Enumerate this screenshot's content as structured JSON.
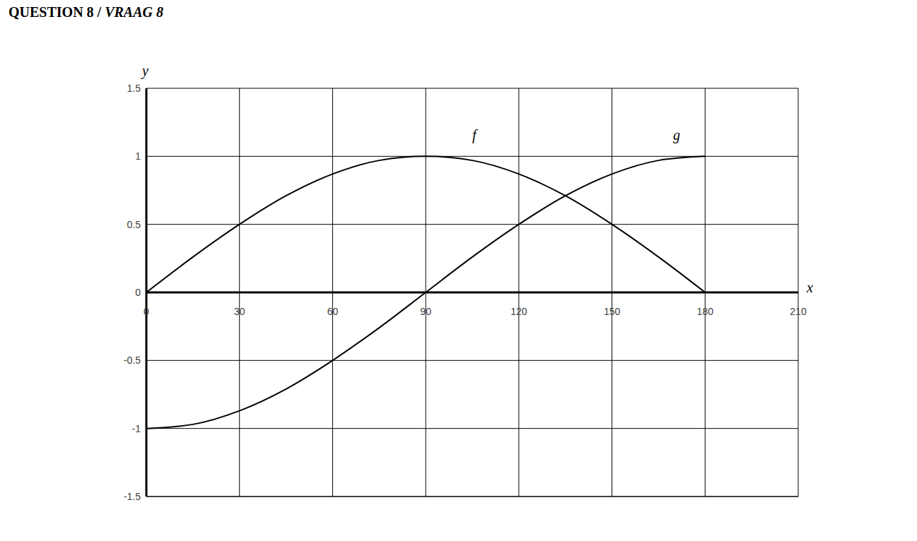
{
  "chart_data": {
    "type": "line",
    "title": "QUESTION 8 / VRAAG 8",
    "x_label": "x",
    "y_label": "y",
    "x": [
      0,
      15,
      30,
      45,
      60,
      75,
      90,
      105,
      120,
      135,
      150,
      165,
      180
    ],
    "series": [
      {
        "name": "f",
        "color": "#000000",
        "values": [
          0,
          0.26,
          0.5,
          0.71,
          0.87,
          0.97,
          1,
          0.97,
          0.87,
          0.71,
          0.5,
          0.26,
          0
        ]
      },
      {
        "name": "g",
        "color": "#000000",
        "values": [
          -1,
          -0.97,
          -0.87,
          -0.71,
          -0.5,
          -0.26,
          0,
          0.26,
          0.5,
          0.71,
          0.87,
          0.97,
          1
        ]
      }
    ],
    "xlim": [
      0,
      210
    ],
    "xticks": [
      0,
      30,
      60,
      90,
      120,
      150,
      180,
      210
    ],
    "ylim": [
      -1.5,
      1.5
    ],
    "yticks": [
      -1.5,
      -1,
      -0.5,
      0,
      0.5,
      1,
      1.5
    ],
    "grid": true
  }
}
